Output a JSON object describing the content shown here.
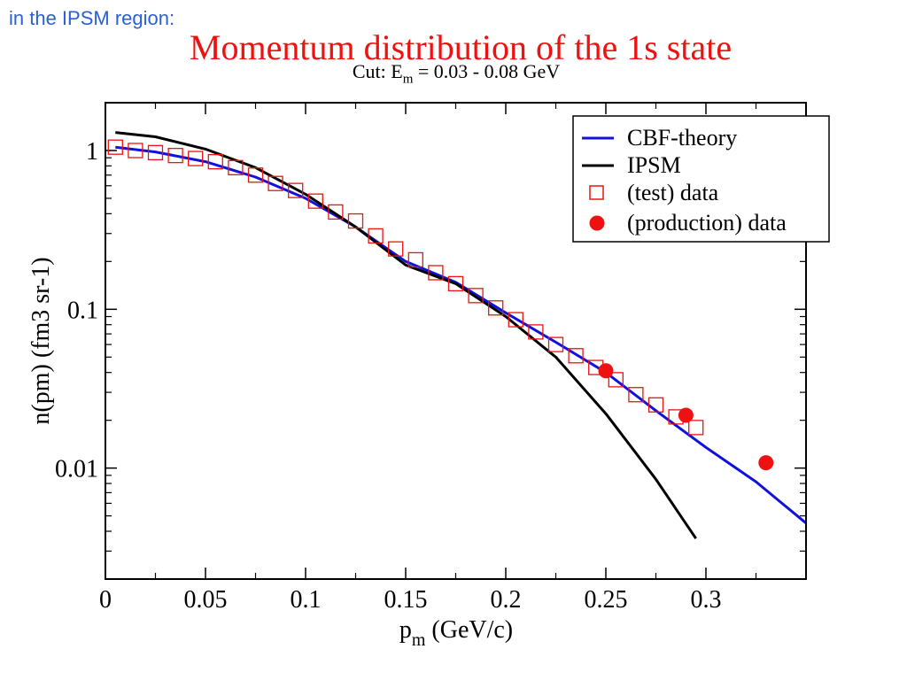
{
  "slide": {
    "heading": "in the IPSM region:"
  },
  "chart_data": {
    "type": "line",
    "title": "Momentum distribution of the 1s state",
    "subtitle_prefix": "Cut: E",
    "subtitle_sub": "m",
    "subtitle_suffix": " = 0.03 - 0.08 GeV",
    "xlabel_main": "p",
    "xlabel_sub": "m",
    "xlabel_unit": " (GeV/c)",
    "ylabel": "n(pm) (fm3 sr-1)",
    "xlim": [
      0,
      0.35
    ],
    "ylim": [
      0.002,
      2
    ],
    "yscale": "log",
    "xticks": [
      0,
      0.05,
      0.1,
      0.15,
      0.2,
      0.25,
      0.3
    ],
    "xtick_labels": [
      "0",
      "0.05",
      "0.1",
      "0.15",
      "0.2",
      "0.25",
      "0.3"
    ],
    "yticks": [
      1,
      0.1,
      0.01
    ],
    "ytick_labels": [
      "1",
      "0.1",
      "0.01"
    ],
    "legend_position": "top-right",
    "series": [
      {
        "name": "CBF-theory",
        "kind": "line",
        "color": "#1111dd",
        "x": [
          0.005,
          0.025,
          0.05,
          0.075,
          0.1,
          0.125,
          0.15,
          0.175,
          0.2,
          0.225,
          0.25,
          0.275,
          0.3,
          0.325,
          0.35
        ],
        "y": [
          1.05,
          0.98,
          0.85,
          0.68,
          0.5,
          0.33,
          0.2,
          0.148,
          0.095,
          0.062,
          0.04,
          0.023,
          0.0135,
          0.0082,
          0.0045
        ]
      },
      {
        "name": "IPSM",
        "kind": "line",
        "color": "#000000",
        "x": [
          0.005,
          0.025,
          0.05,
          0.075,
          0.1,
          0.125,
          0.15,
          0.175,
          0.2,
          0.225,
          0.25,
          0.275,
          0.295
        ],
        "y": [
          1.3,
          1.22,
          1.02,
          0.78,
          0.53,
          0.33,
          0.19,
          0.145,
          0.09,
          0.05,
          0.022,
          0.0085,
          0.0036
        ]
      },
      {
        "name": "(test) data",
        "kind": "open-square",
        "color": "#ee1111",
        "x": [
          0.005,
          0.015,
          0.025,
          0.035,
          0.045,
          0.055,
          0.065,
          0.075,
          0.085,
          0.095,
          0.105,
          0.115,
          0.125,
          0.135,
          0.145,
          0.155,
          0.165,
          0.175,
          0.185,
          0.195,
          0.205,
          0.215,
          0.225,
          0.235,
          0.245,
          0.255,
          0.265,
          0.275,
          0.285,
          0.295
        ],
        "y": [
          1.05,
          1.0,
          0.97,
          0.93,
          0.89,
          0.85,
          0.78,
          0.7,
          0.62,
          0.56,
          0.48,
          0.41,
          0.36,
          0.29,
          0.24,
          0.205,
          0.17,
          0.145,
          0.122,
          0.102,
          0.086,
          0.072,
          0.06,
          0.051,
          0.043,
          0.036,
          0.029,
          0.025,
          0.021,
          0.018
        ]
      },
      {
        "name": "(production) data",
        "kind": "filled-circle",
        "color": "#ee1111",
        "x": [
          0.25,
          0.29,
          0.33
        ],
        "y": [
          0.041,
          0.0215,
          0.0108
        ]
      }
    ]
  }
}
